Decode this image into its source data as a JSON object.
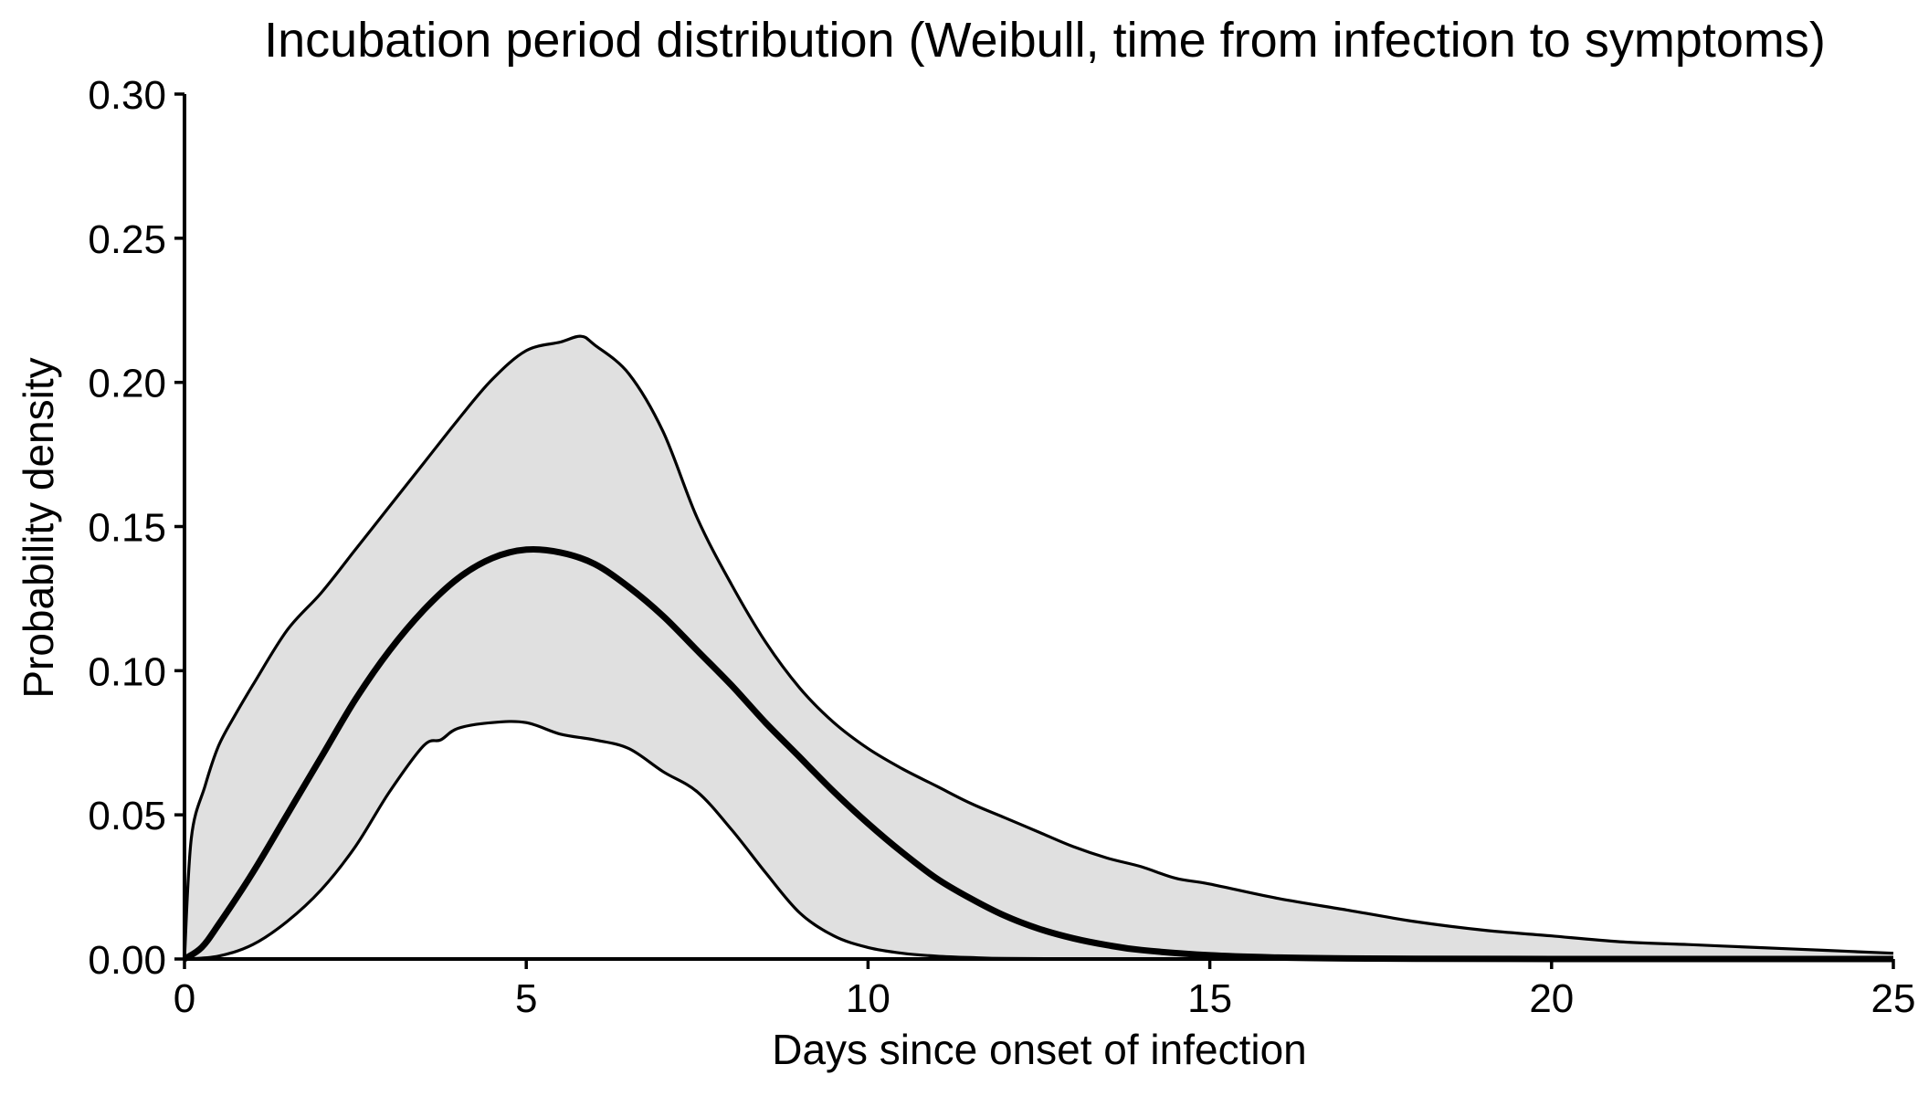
{
  "chart_data": {
    "type": "area",
    "title": "Incubation period distribution (Weibull, time from infection to symptoms)",
    "xlabel": "Days since onset of infection",
    "ylabel": "Probability density",
    "xlim": [
      0,
      25
    ],
    "ylim": [
      0,
      0.3
    ],
    "x_ticks": [
      0,
      5,
      10,
      15,
      20,
      25
    ],
    "y_ticks": [
      0,
      0.05,
      0.1,
      0.15,
      0.2,
      0.25,
      0.3
    ],
    "x_tick_labels": [
      "0",
      "5",
      "10",
      "15",
      "20",
      "25"
    ],
    "y_tick_labels": [
      "0.00",
      "0.05",
      "0.10",
      "0.15",
      "0.20",
      "0.25",
      "0.30"
    ],
    "grid": false,
    "legend": "none",
    "series": [
      {
        "role": "median",
        "x": [
          0,
          0.25,
          0.5,
          1,
          1.5,
          2,
          2.5,
          3,
          3.5,
          4,
          4.5,
          5,
          5.5,
          6,
          6.5,
          7,
          7.5,
          8,
          8.5,
          9,
          9.5,
          10,
          10.5,
          11,
          11.5,
          12,
          12.5,
          13,
          13.5,
          14,
          15,
          16,
          17,
          18,
          20,
          22,
          25
        ],
        "y": [
          0,
          0.004,
          0.012,
          0.03,
          0.05,
          0.07,
          0.09,
          0.107,
          0.121,
          0.132,
          0.139,
          0.142,
          0.141,
          0.137,
          0.129,
          0.119,
          0.107,
          0.095,
          0.082,
          0.07,
          0.058,
          0.047,
          0.037,
          0.028,
          0.021,
          0.015,
          0.0105,
          0.0072,
          0.0048,
          0.0031,
          0.0013,
          0.0005,
          0.0002,
          0.0001,
          0,
          0,
          0
        ]
      },
      {
        "role": "upper",
        "x": [
          0,
          0.1,
          0.3,
          0.5,
          0.75,
          1,
          1.5,
          2,
          2.5,
          3,
          3.5,
          4,
          4.5,
          5,
          5.5,
          5.8,
          6,
          6.5,
          7,
          7.5,
          8,
          8.5,
          9,
          9.5,
          10,
          10.5,
          11,
          11.5,
          12,
          12.5,
          13,
          13.5,
          14,
          14.5,
          15,
          16,
          17,
          18,
          19,
          20,
          21,
          22,
          23,
          24,
          25
        ],
        "y": [
          0,
          0.042,
          0.06,
          0.074,
          0.085,
          0.095,
          0.114,
          0.127,
          0.142,
          0.157,
          0.172,
          0.187,
          0.201,
          0.211,
          0.214,
          0.216,
          0.213,
          0.203,
          0.183,
          0.153,
          0.13,
          0.11,
          0.094,
          0.082,
          0.073,
          0.066,
          0.06,
          0.054,
          0.049,
          0.044,
          0.039,
          0.035,
          0.032,
          0.028,
          0.026,
          0.021,
          0.017,
          0.013,
          0.01,
          0.008,
          0.006,
          0.005,
          0.004,
          0.003,
          0.002
        ]
      },
      {
        "role": "lower",
        "x": [
          0,
          0.5,
          1,
          1.5,
          2,
          2.5,
          3,
          3.5,
          3.75,
          4,
          4.5,
          5,
          5.5,
          6,
          6.5,
          7,
          7.5,
          8,
          8.5,
          9,
          9.5,
          10,
          10.5,
          11,
          11.5,
          12,
          13,
          14,
          15,
          25
        ],
        "y": [
          0,
          0.001,
          0.005,
          0.013,
          0.024,
          0.039,
          0.058,
          0.074,
          0.076,
          0.08,
          0.082,
          0.082,
          0.078,
          0.076,
          0.073,
          0.065,
          0.058,
          0.045,
          0.03,
          0.016,
          0.008,
          0.004,
          0.002,
          0.001,
          0.0005,
          0.0002,
          0.0001,
          0,
          0,
          0
        ]
      }
    ]
  }
}
